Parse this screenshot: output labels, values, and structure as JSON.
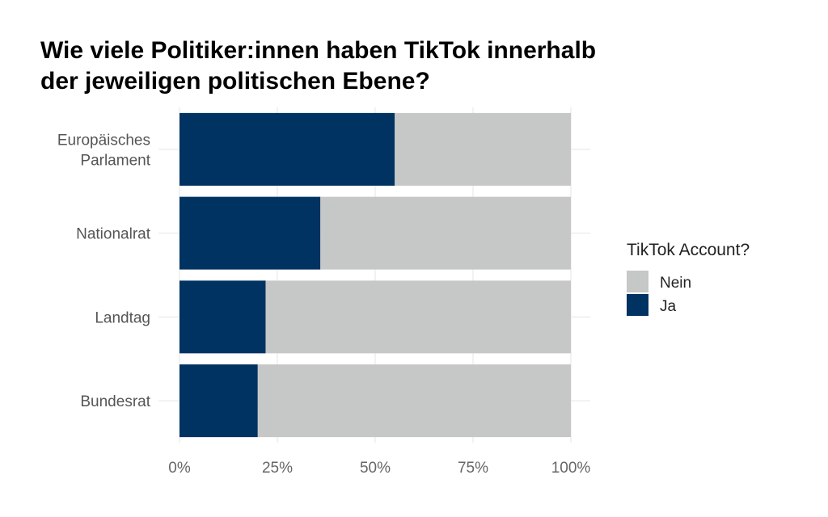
{
  "chart_data": {
    "type": "bar",
    "orientation": "horizontal",
    "stacked": "percent",
    "title": "Wie viele Politiker:innen haben TikTok innerhalb der jeweiligen politischen Ebene?",
    "title_lines": [
      "Wie viele Politiker:innen haben TikTok innerhalb",
      "der jeweiligen politischen Ebene?"
    ],
    "categories": [
      [
        "Europäisches",
        "Parlament"
      ],
      [
        "Nationalrat"
      ],
      [
        "Landtag"
      ],
      [
        "Bundesrat"
      ]
    ],
    "series": [
      {
        "name": "Ja",
        "color": "#003262",
        "values": [
          0.55,
          0.36,
          0.22,
          0.2
        ]
      },
      {
        "name": "Nein",
        "color": "#c6c8c7",
        "values": [
          0.45,
          0.64,
          0.78,
          0.8
        ]
      }
    ],
    "xticks": [
      "0%",
      "25%",
      "50%",
      "75%",
      "100%"
    ],
    "xlim": [
      0,
      1
    ],
    "legend": {
      "title": "TikTok Account?",
      "placement": "right",
      "entries": [
        {
          "label": "Nein",
          "color": "#c6c8c7"
        },
        {
          "label": "Ja",
          "color": "#003262"
        }
      ]
    },
    "grid": true
  }
}
